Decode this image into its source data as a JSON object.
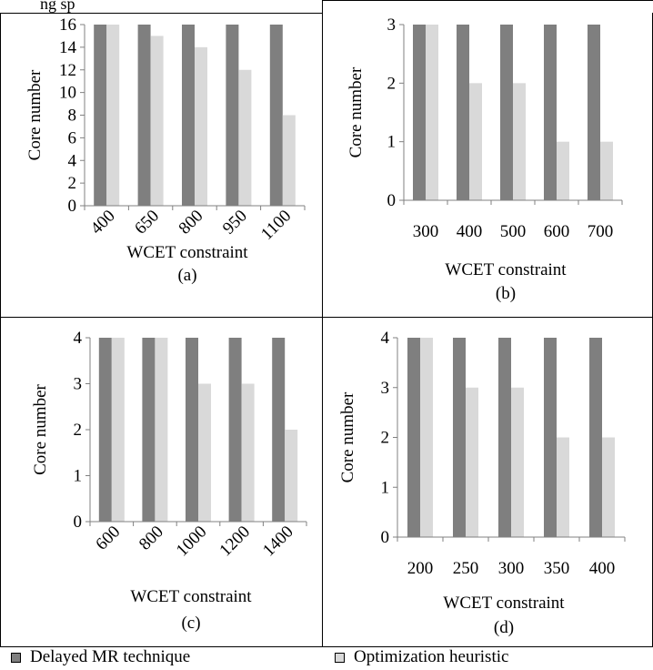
{
  "header_fragment": "ng sp",
  "legend": [
    {
      "label": "Delayed MR technique",
      "color": "#7f7f7f"
    },
    {
      "label": "Optimization heuristic",
      "color": "#d9d9d9"
    }
  ],
  "chart_data": [
    {
      "type": "bar",
      "panel_label": "(a)",
      "categories": [
        "400",
        "650",
        "800",
        "950",
        "1100"
      ],
      "series": [
        {
          "name": "Delayed MR technique",
          "values": [
            16,
            16,
            16,
            16,
            16
          ]
        },
        {
          "name": "Optimization heuristic",
          "values": [
            16,
            15,
            14,
            12,
            8
          ]
        }
      ],
      "xlabel": "WCET constraint",
      "ylabel": "Core number",
      "ylim": [
        0,
        16
      ],
      "yticks": [
        "0",
        "2",
        "4",
        "6",
        "8",
        "10",
        "12",
        "14",
        "16"
      ],
      "tick_rotation": "rotated",
      "grid": false
    },
    {
      "type": "bar",
      "panel_label": "(b)",
      "categories": [
        "300",
        "400",
        "500",
        "600",
        "700"
      ],
      "series": [
        {
          "name": "Delayed MR technique",
          "values": [
            3,
            3,
            3,
            3,
            3
          ]
        },
        {
          "name": "Optimization heuristic",
          "values": [
            3,
            2,
            2,
            1,
            1
          ]
        }
      ],
      "xlabel": "WCET constraint",
      "ylabel": "Core number",
      "ylim": [
        0,
        3
      ],
      "yticks": [
        "0",
        "1",
        "2",
        "3"
      ],
      "tick_rotation": "horizontal",
      "grid": false
    },
    {
      "type": "bar",
      "panel_label": "(c)",
      "categories": [
        "600",
        "800",
        "1000",
        "1200",
        "1400"
      ],
      "series": [
        {
          "name": "Delayed MR technique",
          "values": [
            4,
            4,
            4,
            4,
            4
          ]
        },
        {
          "name": "Optimization heuristic",
          "values": [
            4,
            4,
            3,
            3,
            2
          ]
        }
      ],
      "xlabel": "WCET constraint",
      "ylabel": "Core number",
      "ylim": [
        0,
        4
      ],
      "yticks": [
        "0",
        "1",
        "2",
        "3",
        "4"
      ],
      "tick_rotation": "rotated",
      "grid": false
    },
    {
      "type": "bar",
      "panel_label": "(d)",
      "categories": [
        "200",
        "250",
        "300",
        "350",
        "400"
      ],
      "series": [
        {
          "name": "Delayed MR technique",
          "values": [
            4,
            4,
            4,
            4,
            4
          ]
        },
        {
          "name": "Optimization heuristic",
          "values": [
            4,
            3,
            3,
            2,
            2
          ]
        }
      ],
      "xlabel": "WCET constraint",
      "ylabel": "Core number",
      "ylim": [
        0,
        4
      ],
      "yticks": [
        "0",
        "1",
        "2",
        "3",
        "4"
      ],
      "tick_rotation": "horizontal",
      "grid": false
    }
  ]
}
